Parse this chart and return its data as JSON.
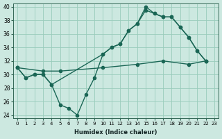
{
  "xlabel": "Humidex (Indice chaleur)",
  "background_color": "#cce8e0",
  "grid_color": "#99ccbb",
  "line_color": "#1a6655",
  "xlim": [
    -0.5,
    23.5
  ],
  "ylim": [
    23.5,
    40.5
  ],
  "xticks": [
    0,
    1,
    2,
    3,
    4,
    5,
    6,
    7,
    8,
    9,
    10,
    11,
    12,
    13,
    14,
    15,
    16,
    17,
    18,
    19,
    20,
    21,
    22,
    23
  ],
  "yticks": [
    24,
    26,
    28,
    30,
    32,
    34,
    36,
    38,
    40
  ],
  "line1_x": [
    0,
    1,
    2,
    3,
    4,
    5,
    6,
    7,
    8,
    9,
    10,
    11,
    12,
    13,
    14,
    15,
    16,
    17,
    18,
    19,
    20,
    21,
    22
  ],
  "line1_y": [
    31,
    29.5,
    30,
    30,
    28.5,
    25.5,
    25,
    24,
    27,
    29.5,
    33,
    34,
    34.5,
    36.5,
    37.5,
    40,
    39,
    38.5,
    38.5,
    37,
    35.5,
    33.5,
    32
  ],
  "line2_x": [
    0,
    1,
    2,
    3,
    4,
    10,
    11,
    12,
    13,
    14,
    15,
    16,
    17,
    18,
    19,
    20,
    21,
    22
  ],
  "line2_y": [
    31,
    29.5,
    30,
    30,
    28.5,
    33,
    34,
    34.5,
    36.5,
    37.5,
    39.5,
    39,
    38.5,
    38.5,
    37,
    35.5,
    33.5,
    32
  ],
  "line3_x": [
    0,
    3,
    5,
    10,
    14,
    17,
    20,
    22
  ],
  "line3_y": [
    31,
    30.5,
    30.5,
    31.0,
    31.5,
    32.0,
    31.5,
    32
  ],
  "line_width": 1.0,
  "marker_size": 3.0
}
